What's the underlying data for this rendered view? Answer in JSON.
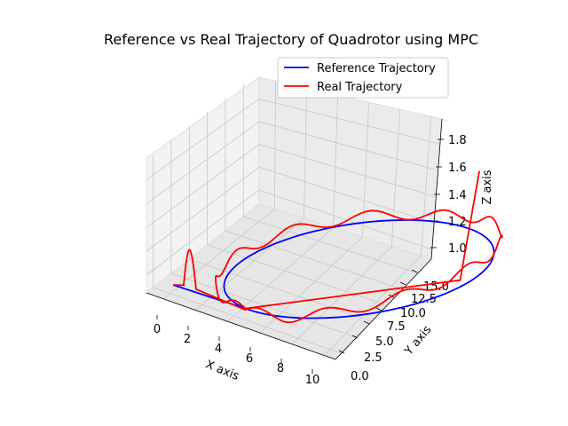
{
  "chart_data": {
    "type": "line-3d",
    "title": "Reference vs Real Trajectory of Quadrotor using MPC",
    "xlabel": "X axis",
    "ylabel": "Y axis",
    "zlabel": "Z axis",
    "xlim": [
      -0.5,
      10.5
    ],
    "ylim": [
      -1,
      16
    ],
    "zlim": [
      0.9,
      1.9
    ],
    "xticks": [
      "0",
      "2",
      "4",
      "6",
      "8",
      "10"
    ],
    "yticks": [
      "0.0",
      "2.5",
      "5.0",
      "7.5",
      "10.0",
      "12.5",
      "15.0"
    ],
    "zticks": [
      "1.0",
      "1.2",
      "1.4",
      "1.6",
      "1.8"
    ],
    "legend_position": "top-right",
    "series": [
      {
        "name": "Reference Trajectory",
        "color": "#0000ff",
        "description": "Straight-line takeoff from the origin, then a circular loop of radius 7.5 around (x=5, y=7.5) at constant altitude z=1.0"
      },
      {
        "name": "Real Trajectory",
        "color": "#ff0000",
        "description": "Tracks the reference loop with overshoot/oscillations, then climbs vertically near x=10 to z≈1.8"
      }
    ]
  }
}
